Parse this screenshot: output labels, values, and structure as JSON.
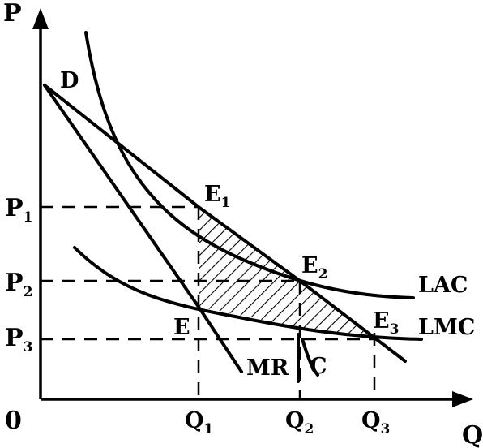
{
  "axes": {
    "y_label": "P",
    "x_label": "Q",
    "origin_label": "0"
  },
  "price_ticks": [
    {
      "base": "P",
      "sub": "1"
    },
    {
      "base": "P",
      "sub": "2"
    },
    {
      "base": "P",
      "sub": "3"
    }
  ],
  "quantity_ticks": [
    {
      "base": "Q",
      "sub": "1"
    },
    {
      "base": "Q",
      "sub": "2"
    },
    {
      "base": "Q",
      "sub": "3"
    }
  ],
  "curves": {
    "demand": "D",
    "marginal_revenue": "MR",
    "long_run_average_cost": "LAC",
    "long_run_marginal_cost": "LMC"
  },
  "points": {
    "e1": {
      "base": "E",
      "sub": "1"
    },
    "e2": {
      "base": "E",
      "sub": "2"
    },
    "e3": {
      "base": "E",
      "sub": "3"
    },
    "e": {
      "base": "E",
      "sub": ""
    },
    "c": {
      "base": "C",
      "sub": ""
    }
  }
}
